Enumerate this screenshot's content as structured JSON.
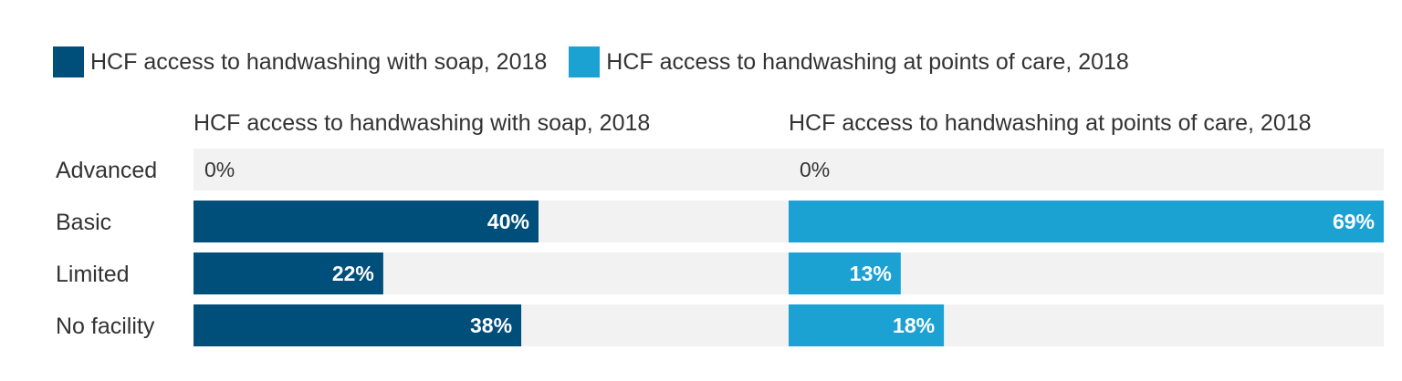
{
  "legend": [
    {
      "label": "HCF access to handwashing with soap, 2018",
      "color": "#004e7a"
    },
    {
      "label": "HCF access to handwashing at points of care, 2018",
      "color": "#1ba2d3"
    }
  ],
  "chart_data": {
    "type": "bar",
    "orientation": "horizontal",
    "layout": "small-multiples",
    "categories": [
      "Advanced",
      "Basic",
      "Limited",
      "No facility"
    ],
    "series": [
      {
        "name": "HCF access to handwashing with soap, 2018",
        "values": [
          0,
          40,
          22,
          38
        ],
        "color": "#004e7a"
      },
      {
        "name": "HCF access to handwashing at points of care, 2018",
        "values": [
          0,
          69,
          13,
          18
        ],
        "color": "#1ba2d3"
      }
    ],
    "value_suffix": "%",
    "xlim": [
      0,
      69
    ],
    "track_color": "#f2f2f2",
    "grid": false,
    "legend_position": "top-left"
  }
}
